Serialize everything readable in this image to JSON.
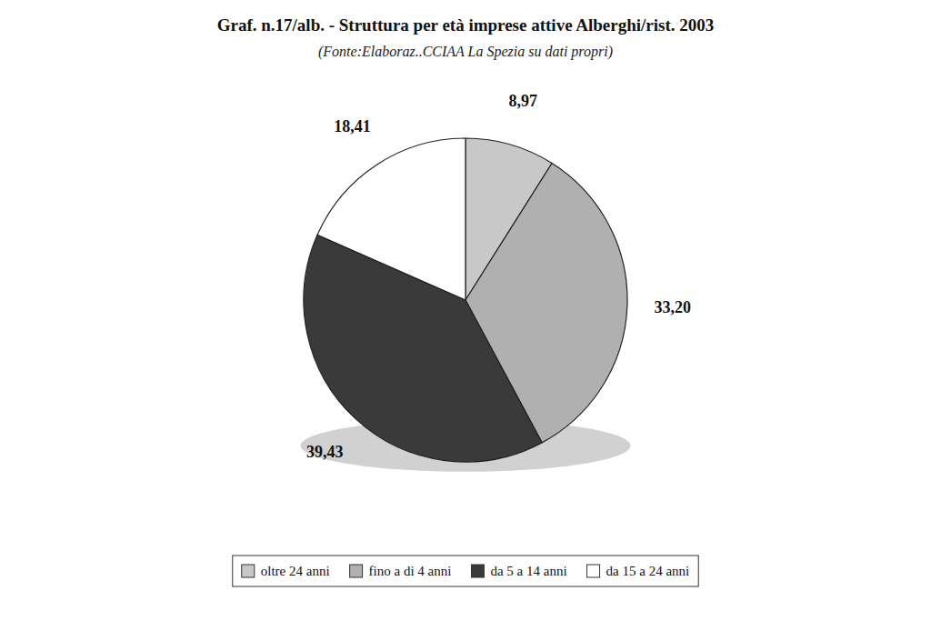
{
  "chart_data": {
    "type": "pie",
    "title": "Graf. n.17/alb. - Struttura per età imprese attive Alberghi/rist.  2003",
    "subtitle": "(Fonte:Elaboraz..CCIAA  La Spezia su dati propri)",
    "categories": [
      "oltre 24 anni",
      "fino a di 4 anni",
      "da 5 a 14 anni",
      "da 15 a 24 anni"
    ],
    "values": [
      8.97,
      33.2,
      39.43,
      18.41
    ],
    "value_labels": [
      "8,97",
      "33,20",
      "39,43",
      "18,41"
    ],
    "colors": [
      "#c8c8c8",
      "#b0b0b0",
      "#3a3a3a",
      "#ffffff"
    ],
    "data_labels": true,
    "legend": "bottom"
  }
}
